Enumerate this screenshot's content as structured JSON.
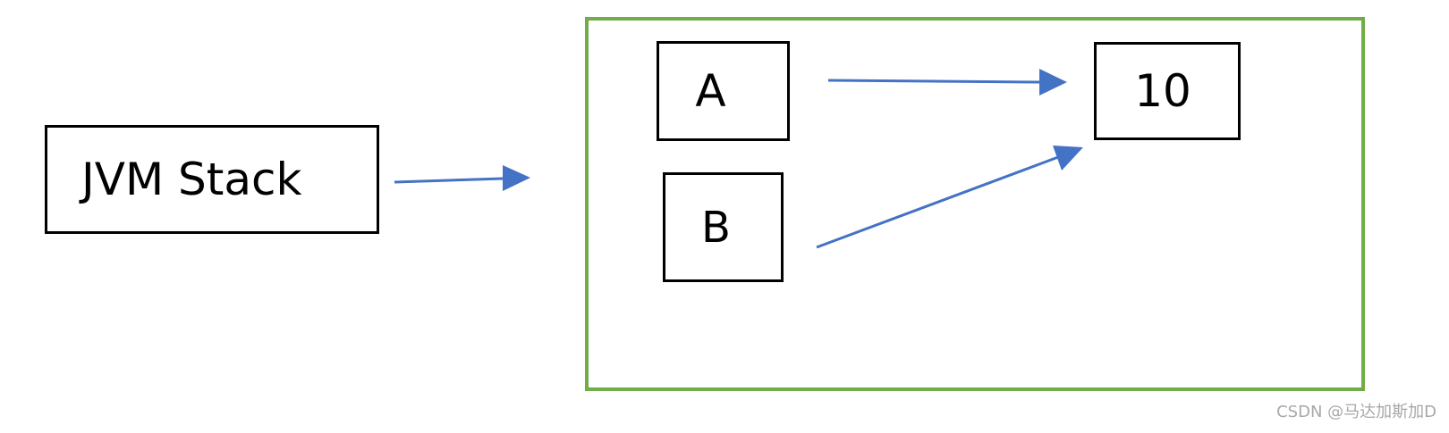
{
  "diagram": {
    "nodes": {
      "jvm_stack": {
        "label": "JVM Stack"
      },
      "a": {
        "label": "A"
      },
      "b": {
        "label": "B"
      },
      "value": {
        "label": "10"
      }
    },
    "edges": [
      {
        "from": "jvm_stack",
        "to": "heap_area"
      },
      {
        "from": "a",
        "to": "value"
      },
      {
        "from": "b",
        "to": "value"
      }
    ],
    "colors": {
      "node_border": "#000000",
      "container_border": "#70ad47",
      "arrow": "#4472c4",
      "watermark": "#a8a8a8"
    }
  },
  "watermark": {
    "text": "CSDN @马达加斯加D"
  }
}
